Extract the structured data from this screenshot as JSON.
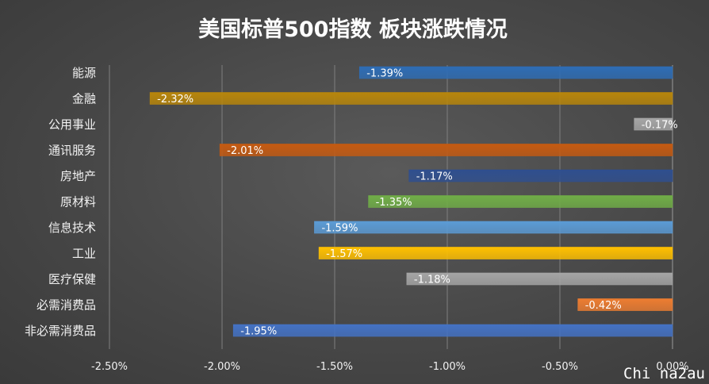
{
  "chart_data": {
    "type": "bar",
    "orientation": "horizontal",
    "title": "美国标普500指数 板块涨跌情况",
    "categories": [
      "能源",
      "金融",
      "公用事业",
      "通讯服务",
      "房地产",
      "原材料",
      "信息技术",
      "工业",
      "医疗保健",
      "必需消费品",
      "非必需消费品"
    ],
    "values": [
      -1.39,
      -2.32,
      -0.17,
      -2.01,
      -1.17,
      -1.35,
      -1.59,
      -1.57,
      -1.18,
      -0.42,
      -1.95
    ],
    "value_labels": [
      "-1.39%",
      "-2.32%",
      "-0.17%",
      "-2.01%",
      "-1.17%",
      "-1.35%",
      "-1.59%",
      "-1.57%",
      "-1.18%",
      "-0.42%",
      "-1.95%"
    ],
    "colors": [
      "#2e6db5",
      "#b8860b",
      "#a6a6a6",
      "#c55a11",
      "#2f4f8f",
      "#70ad47",
      "#5b9bd5",
      "#ffc000",
      "#a5a5a5",
      "#ed7d31",
      "#4472c4"
    ],
    "xlim": [
      -2.5,
      0
    ],
    "xticks": [
      -2.5,
      -2.0,
      -1.5,
      -1.0,
      -0.5,
      0
    ],
    "xtick_labels": [
      "-2.50%",
      "-2.00%",
      "-1.50%",
      "-1.00%",
      "-0.50%",
      "0.00%"
    ],
    "grid": true,
    "legend": false
  },
  "watermark": "Chi na2au"
}
